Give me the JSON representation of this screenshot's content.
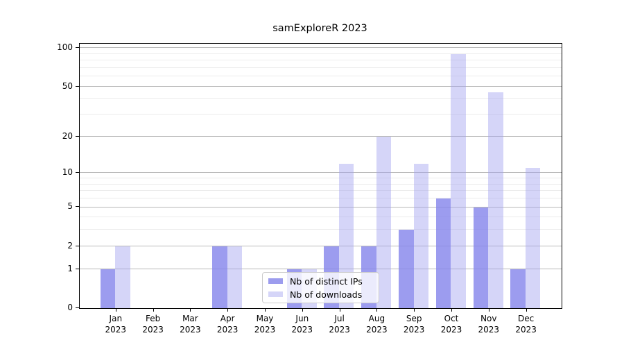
{
  "title": "samExploreR 2023",
  "chart_data": {
    "type": "bar",
    "title": "samExploreR 2023",
    "categories": [
      "Jan 2023",
      "Feb 2023",
      "Mar 2023",
      "Apr 2023",
      "May 2023",
      "Jun 2023",
      "Jul 2023",
      "Aug 2023",
      "Sep 2023",
      "Oct 2023",
      "Nov 2023",
      "Dec 2023"
    ],
    "series": [
      {
        "name": "Nb of distinct IPs",
        "values": [
          1,
          0,
          0,
          2,
          0,
          1,
          2,
          2,
          3,
          6,
          5,
          1
        ],
        "color": "#9c9cee",
        "color_rgba": "rgba(131,131,235,0.8)"
      },
      {
        "name": "Nb of downloads",
        "values": [
          2,
          0,
          0,
          2,
          0,
          1,
          12,
          20,
          12,
          90,
          45,
          11
        ],
        "color": "#d5d5f8",
        "color_rgba": "rgba(162,162,240,0.45)"
      }
    ],
    "xlabel": "",
    "ylabel": "",
    "yscale": "log1p",
    "yticks_major": [
      0,
      1,
      2,
      5,
      10,
      20,
      50,
      100
    ],
    "gridlines_minor": [
      3,
      4,
      6,
      7,
      8,
      9,
      30,
      40,
      60,
      70,
      80,
      90
    ],
    "ylim": [
      0,
      108
    ],
    "grid": true,
    "legend_position": "lower center",
    "colors": {
      "grid_major": "#b8b8b8",
      "grid_minor": "#ececec",
      "spine": "#000000",
      "text": "#000000",
      "background": "#ffffff"
    }
  }
}
